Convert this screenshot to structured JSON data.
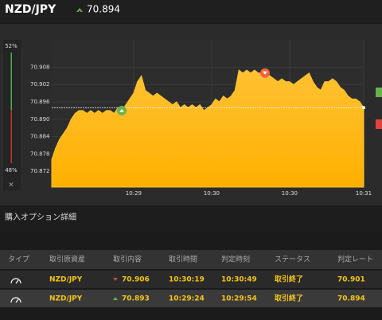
{
  "header": {
    "symbol": "NZD/JPY",
    "price": "70.894"
  },
  "sentiment": {
    "up": {
      "value": 52,
      "label": "52%"
    },
    "down": {
      "value": 48,
      "label": "48%"
    }
  },
  "chart_data": {
    "type": "area",
    "color": "#ffc233",
    "grid": true,
    "x": [
      null,
      null,
      null,
      null,
      null,
      null,
      null,
      null,
      null,
      null,
      null,
      null,
      null,
      null,
      null,
      null,
      null,
      null,
      null,
      null,
      null,
      "10:29",
      null,
      null,
      null,
      null,
      null,
      null,
      null,
      null,
      null,
      null,
      null,
      null,
      null,
      null,
      null,
      null,
      null,
      null,
      null,
      "10:30",
      null,
      null,
      null,
      null,
      null,
      null,
      null,
      null,
      null,
      null,
      null,
      null,
      null,
      null,
      null,
      null,
      null,
      null,
      null,
      "10:30",
      null,
      null,
      null,
      null,
      null,
      null,
      null,
      null,
      null,
      null,
      null,
      null,
      null,
      null,
      null,
      null,
      null,
      null,
      "10:31"
    ],
    "values": [
      70.876,
      70.88,
      70.883,
      70.885,
      70.887,
      70.89,
      70.892,
      70.893,
      70.893,
      70.892,
      70.893,
      70.892,
      70.893,
      70.892,
      70.893,
      70.893,
      70.892,
      70.894,
      70.893,
      70.895,
      70.897,
      70.899,
      70.903,
      70.905,
      70.9,
      70.899,
      70.898,
      70.899,
      70.898,
      70.897,
      70.896,
      70.895,
      70.896,
      70.894,
      70.895,
      70.894,
      70.895,
      70.894,
      70.895,
      70.893,
      70.894,
      70.895,
      70.897,
      70.896,
      70.898,
      70.897,
      70.898,
      70.9,
      70.907,
      70.906,
      70.907,
      70.906,
      70.907,
      70.906,
      70.906,
      70.906,
      70.905,
      70.904,
      70.903,
      70.904,
      70.903,
      70.903,
      70.902,
      70.903,
      70.904,
      70.905,
      70.906,
      70.903,
      70.901,
      70.9,
      70.903,
      70.903,
      70.904,
      70.903,
      70.901,
      70.9,
      70.898,
      70.897,
      70.897,
      70.896,
      70.894
    ],
    "ylim": [
      70.8665,
      70.9175
    ],
    "yticks": [
      70.872,
      70.878,
      70.884,
      {
        "value": 70.89,
        "label": "70.890"
      },
      70.896,
      70.902,
      70.908
    ],
    "current_price": 70.894,
    "markers": [
      {
        "value": 70.893,
        "direction": "up",
        "color": "#6ab04c"
      },
      {
        "value": 70.906,
        "direction": "down",
        "color": "#f0643c"
      }
    ]
  },
  "section_title": "購入オプション詳細",
  "table": {
    "columns": [
      "タイプ",
      "取引原資産",
      "取引内容",
      "取引時間",
      "判定時刻",
      "ステータス",
      "判定レート"
    ],
    "rows": [
      [
        "NZD/JPY",
        "70.906",
        "10:30:19",
        "10:30:49",
        "取引終了",
        "70.901"
      ],
      [
        "NZD/JPY",
        "70.893",
        "10:29:24",
        "10:29:54",
        "取引終了",
        "70.894"
      ]
    ],
    "row_directions": [
      "down",
      "up"
    ]
  }
}
